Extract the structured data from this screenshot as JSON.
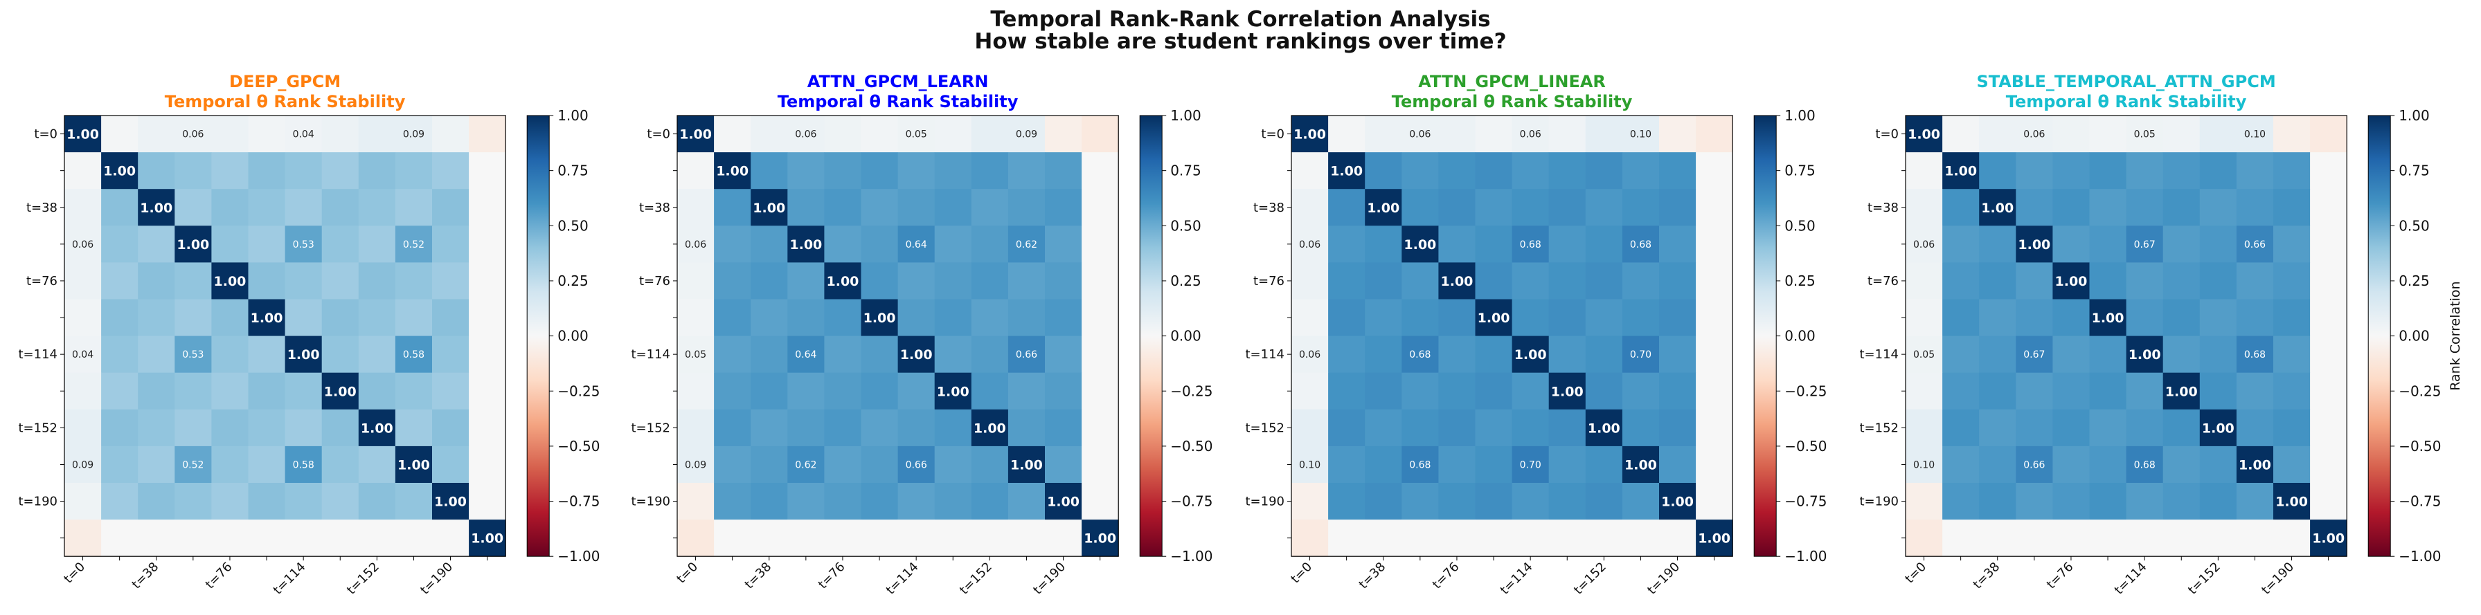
{
  "figure": {
    "title_line1": "Temporal Rank-Rank Correlation Analysis",
    "title_line2": "How stable are student rankings over time?",
    "colorbar_label": "Rank Correlation",
    "colorscale": "RdBu",
    "colorbar_ticks": [
      "1.00",
      "0.75",
      "0.50",
      "0.25",
      "0.00",
      "−0.25",
      "−0.50",
      "−0.75",
      "−1.00"
    ]
  },
  "chart_data": [
    {
      "type": "heatmap",
      "title": "DEEP_GPCM",
      "subtitle": "Temporal θ Rank Stability",
      "title_color": "#ff7f0e",
      "size": 12,
      "y_tick_labels": [
        "t=0",
        "t=38",
        "t=76",
        "t=114",
        "t=152",
        "t=190"
      ],
      "x_tick_labels": [
        "t=0",
        "t=38",
        "t=76",
        "t=114",
        "t=152",
        "t=190"
      ],
      "vlim": [
        -1,
        1
      ],
      "diagonal": 1.0,
      "edge_values": [
        0.02,
        0.06,
        0.05,
        0.06,
        0.03,
        0.04,
        0.06,
        0.09,
        0.09,
        0.05,
        -0.08
      ],
      "off_diag": [
        0.42,
        0.52,
        0.36,
        0.47,
        0.4,
        0.55
      ],
      "annotations": [
        {
          "i": 0,
          "j": 3,
          "text": "0.06"
        },
        {
          "i": 0,
          "j": 6,
          "text": "0.04"
        },
        {
          "i": 0,
          "j": 9,
          "text": "0.09"
        },
        {
          "i": 3,
          "j": 0,
          "text": "0.06"
        },
        {
          "i": 3,
          "j": 6,
          "text": "0.53"
        },
        {
          "i": 3,
          "j": 9,
          "text": "0.52"
        },
        {
          "i": 6,
          "j": 0,
          "text": "0.04"
        },
        {
          "i": 6,
          "j": 3,
          "text": "0.53"
        },
        {
          "i": 6,
          "j": 9,
          "text": "0.58"
        },
        {
          "i": 9,
          "j": 0,
          "text": "0.09"
        },
        {
          "i": 9,
          "j": 3,
          "text": "0.52"
        },
        {
          "i": 9,
          "j": 6,
          "text": "0.58"
        }
      ]
    },
    {
      "type": "heatmap",
      "title": "ATTN_GPCM_LEARN",
      "subtitle": "Temporal θ Rank Stability",
      "title_color": "#0000ff",
      "size": 12,
      "y_tick_labels": [
        "t=0",
        "t=38",
        "t=76",
        "t=114",
        "t=152",
        "t=190"
      ],
      "x_tick_labels": [
        "t=0",
        "t=38",
        "t=76",
        "t=114",
        "t=152",
        "t=190"
      ],
      "vlim": [
        -1,
        1
      ],
      "diagonal": 1.0,
      "edge_values": [
        0.02,
        0.06,
        0.04,
        0.05,
        0.03,
        0.05,
        0.04,
        0.09,
        0.09,
        -0.06,
        -0.1
      ],
      "off_diag": [
        0.58,
        0.64,
        0.56,
        0.62,
        0.54,
        0.66
      ],
      "annotations": [
        {
          "i": 0,
          "j": 3,
          "text": "0.06"
        },
        {
          "i": 0,
          "j": 6,
          "text": "0.05"
        },
        {
          "i": 0,
          "j": 9,
          "text": "0.09"
        },
        {
          "i": 3,
          "j": 0,
          "text": "0.06"
        },
        {
          "i": 3,
          "j": 6,
          "text": "0.64"
        },
        {
          "i": 3,
          "j": 9,
          "text": "0.62"
        },
        {
          "i": 6,
          "j": 0,
          "text": "0.05"
        },
        {
          "i": 6,
          "j": 3,
          "text": "0.64"
        },
        {
          "i": 6,
          "j": 9,
          "text": "0.66"
        },
        {
          "i": 9,
          "j": 0,
          "text": "0.09"
        },
        {
          "i": 9,
          "j": 3,
          "text": "0.62"
        },
        {
          "i": 9,
          "j": 6,
          "text": "0.66"
        }
      ]
    },
    {
      "type": "heatmap",
      "title": "ATTN_GPCM_LINEAR",
      "subtitle": "Temporal θ Rank Stability",
      "title_color": "#2ca02c",
      "size": 12,
      "y_tick_labels": [
        "t=0",
        "t=38",
        "t=76",
        "t=114",
        "t=152",
        "t=190"
      ],
      "x_tick_labels": [
        "t=0",
        "t=38",
        "t=76",
        "t=114",
        "t=152",
        "t=190"
      ],
      "vlim": [
        -1,
        1
      ],
      "diagonal": 1.0,
      "edge_values": [
        0.02,
        0.06,
        0.04,
        0.06,
        0.03,
        0.06,
        0.04,
        0.1,
        0.1,
        -0.05,
        -0.09
      ],
      "off_diag": [
        0.62,
        0.68,
        0.6,
        0.66,
        0.58,
        0.7
      ],
      "annotations": [
        {
          "i": 0,
          "j": 3,
          "text": "0.06"
        },
        {
          "i": 0,
          "j": 6,
          "text": "0.06"
        },
        {
          "i": 0,
          "j": 9,
          "text": "0.10"
        },
        {
          "i": 3,
          "j": 0,
          "text": "0.06"
        },
        {
          "i": 3,
          "j": 6,
          "text": "0.68"
        },
        {
          "i": 3,
          "j": 9,
          "text": "0.68"
        },
        {
          "i": 6,
          "j": 0,
          "text": "0.06"
        },
        {
          "i": 6,
          "j": 3,
          "text": "0.68"
        },
        {
          "i": 6,
          "j": 9,
          "text": "0.70"
        },
        {
          "i": 9,
          "j": 0,
          "text": "0.10"
        },
        {
          "i": 9,
          "j": 3,
          "text": "0.68"
        },
        {
          "i": 9,
          "j": 6,
          "text": "0.70"
        }
      ]
    },
    {
      "type": "heatmap",
      "title": "STABLE_TEMPORAL_ATTN_GPCM",
      "subtitle": "Temporal θ Rank Stability",
      "title_color": "#17becf",
      "size": 12,
      "y_tick_labels": [
        "t=0",
        "t=38",
        "t=76",
        "t=114",
        "t=152",
        "t=190"
      ],
      "x_tick_labels": [
        "t=0",
        "t=38",
        "t=76",
        "t=114",
        "t=152",
        "t=190"
      ],
      "vlim": [
        -1,
        1
      ],
      "diagonal": 1.0,
      "edge_values": [
        0.02,
        0.06,
        0.04,
        0.05,
        0.03,
        0.05,
        0.04,
        0.1,
        0.1,
        -0.06,
        -0.09
      ],
      "off_diag": [
        0.6,
        0.66,
        0.58,
        0.64,
        0.56,
        0.68
      ],
      "annotations": [
        {
          "i": 0,
          "j": 3,
          "text": "0.06"
        },
        {
          "i": 0,
          "j": 6,
          "text": "0.05"
        },
        {
          "i": 0,
          "j": 9,
          "text": "0.10"
        },
        {
          "i": 3,
          "j": 0,
          "text": "0.06"
        },
        {
          "i": 3,
          "j": 6,
          "text": "0.67"
        },
        {
          "i": 3,
          "j": 9,
          "text": "0.66"
        },
        {
          "i": 6,
          "j": 0,
          "text": "0.05"
        },
        {
          "i": 6,
          "j": 3,
          "text": "0.67"
        },
        {
          "i": 6,
          "j": 9,
          "text": "0.68"
        },
        {
          "i": 9,
          "j": 0,
          "text": "0.10"
        },
        {
          "i": 9,
          "j": 3,
          "text": "0.66"
        },
        {
          "i": 9,
          "j": 6,
          "text": "0.68"
        }
      ]
    }
  ]
}
